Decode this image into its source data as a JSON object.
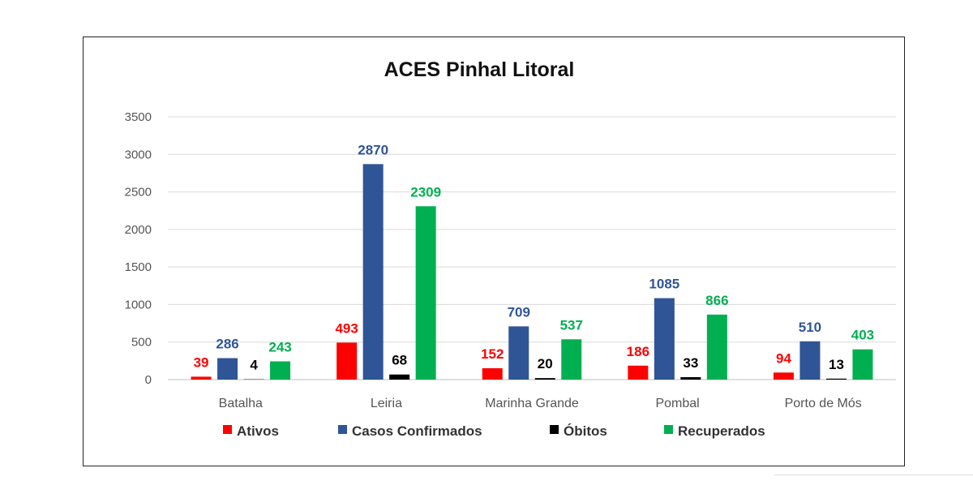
{
  "chart_data": {
    "type": "bar",
    "title": "ACES Pinhal Litoral",
    "categories": [
      "Batalha",
      "Leiria",
      "Marinha Grande",
      "Pombal",
      "Porto de Mós"
    ],
    "series": [
      {
        "name": "Ativos",
        "color": "#ff0000",
        "values": [
          39,
          493,
          152,
          186,
          94
        ]
      },
      {
        "name": "Casos Confirmados",
        "color": "#2f5597",
        "values": [
          286,
          2870,
          709,
          1085,
          510
        ]
      },
      {
        "name": "Óbitos",
        "color": "#000000",
        "values": [
          4,
          68,
          20,
          33,
          13
        ]
      },
      {
        "name": "Recuperados",
        "color": "#00b050",
        "values": [
          243,
          2309,
          537,
          866,
          403
        ]
      }
    ],
    "ylim": [
      0,
      3500
    ],
    "yticks": [
      0,
      500,
      1000,
      1500,
      2000,
      2500,
      3000,
      3500
    ],
    "grid": true,
    "legend": "bottom"
  }
}
